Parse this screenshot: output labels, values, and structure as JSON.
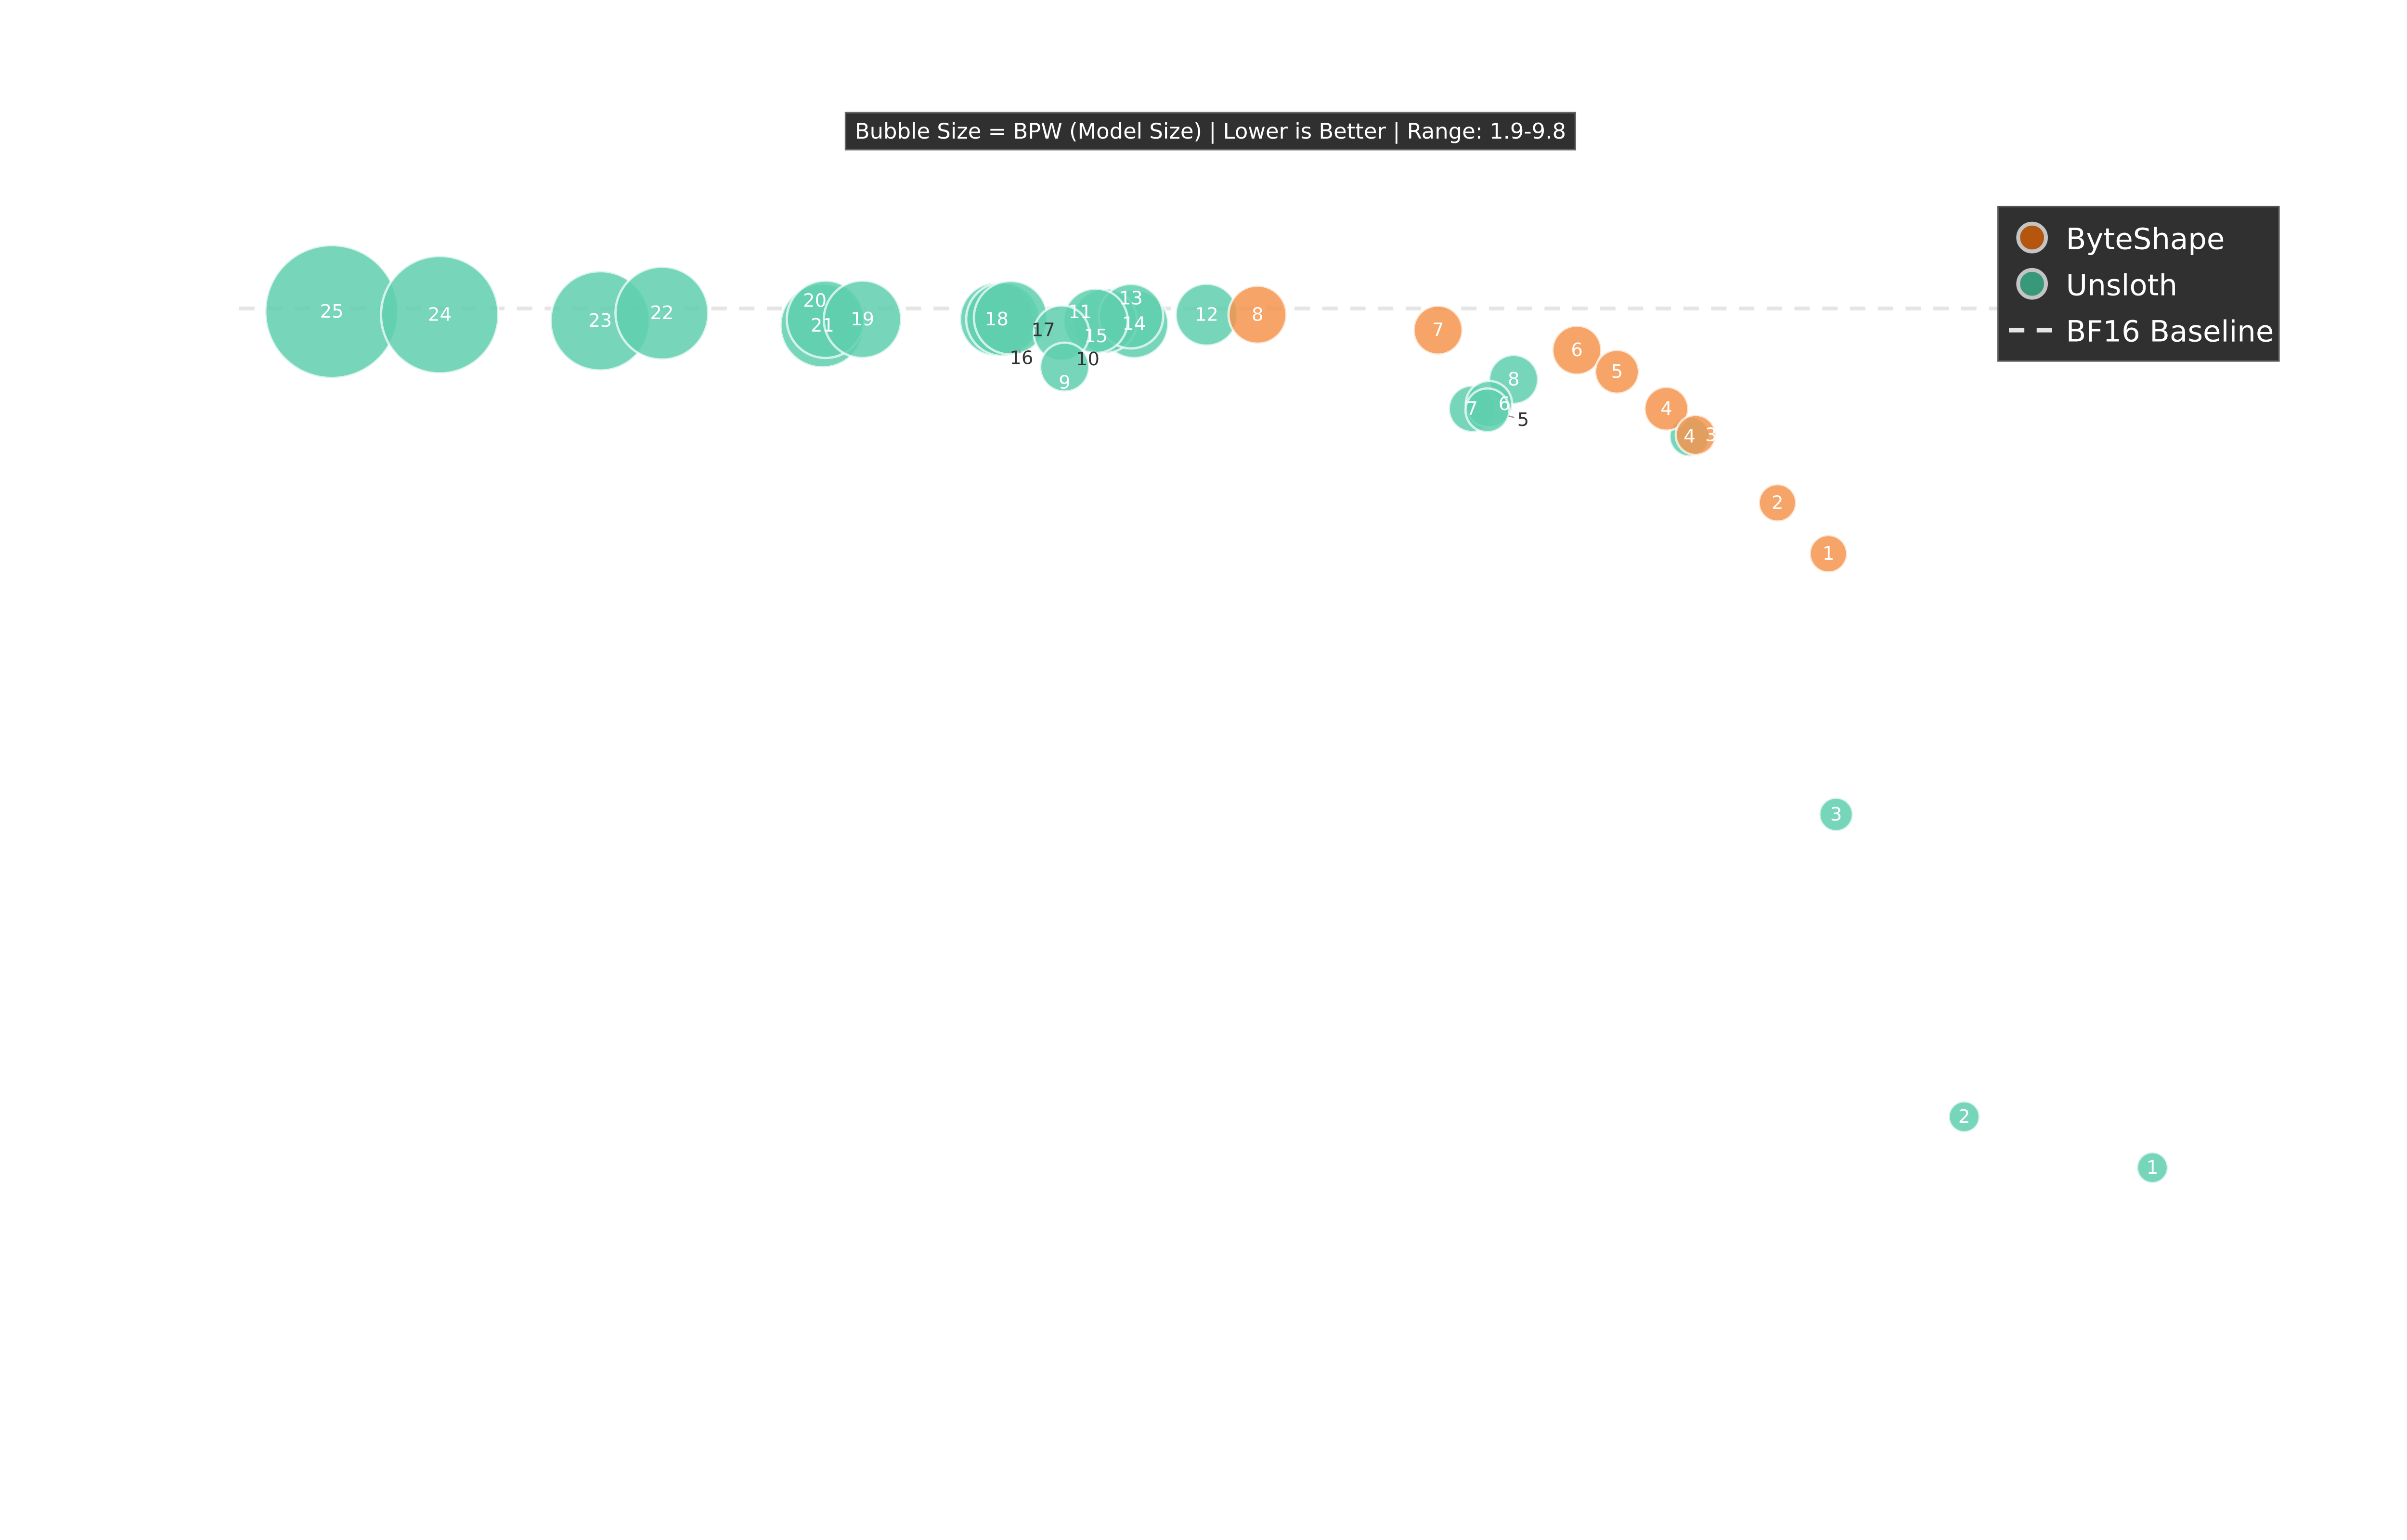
{
  "chart_data": {
    "type": "scatter",
    "subtitle": "Bubble Size = BPW (Model Size) | Lower is Better | Range: 1.9-9.8",
    "xlabel": "",
    "ylabel": "",
    "axes_visible": false,
    "grid": false,
    "legend_placement": "top-right",
    "size_encoding": "bpw",
    "bpw_range": [
      1.9,
      9.8
    ],
    "baseline": {
      "name": "BF16 Baseline",
      "y": 0,
      "style": "dashed",
      "color": "#e5e5e5"
    },
    "series": [
      {
        "name": "Unsloth",
        "color": "#5fcfae",
        "legend_color": "#38987a",
        "points": [
          {
            "label": "25",
            "x": 21.5,
            "y": 0.2,
            "bpw": 9.8
          },
          {
            "label": "24",
            "x": 28.5,
            "y": 0.4,
            "bpw": 8.6
          },
          {
            "label": "23",
            "x": 38.9,
            "y": 0.8,
            "bpw": 7.2
          },
          {
            "label": "22",
            "x": 42.9,
            "y": 0.3,
            "bpw": 6.7
          },
          {
            "label": "21",
            "x": 53.3,
            "y": 1.1,
            "bpw": 6.0
          },
          {
            "label": "20",
            "x": 53.5,
            "y": 0.7,
            "bpw": 5.5
          },
          {
            "label": "19",
            "x": 55.9,
            "y": 0.7,
            "bpw": 5.5
          },
          {
            "label": "18",
            "x": 64.6,
            "y": 0.7,
            "bpw": 5.2
          },
          {
            "label": "17",
            "x": 65.0,
            "y": 0.7,
            "bpw": 5.2
          },
          {
            "label": "16",
            "x": 65.5,
            "y": 0.6,
            "bpw": 5.2
          },
          {
            "label": "15",
            "x": 71.6,
            "y": 0.8,
            "bpw": 4.5
          },
          {
            "label": "14",
            "x": 73.5,
            "y": 1.0,
            "bpw": 4.8
          },
          {
            "label": "13",
            "x": 73.3,
            "y": 0.5,
            "bpw": 4.5
          },
          {
            "label": "12",
            "x": 78.2,
            "y": 0.4,
            "bpw": 4.3
          },
          {
            "label": "11",
            "x": 71.0,
            "y": 0.8,
            "bpw": 4.5
          },
          {
            "label": "10",
            "x": 68.8,
            "y": 1.6,
            "bpw": 3.8
          },
          {
            "label": "9",
            "x": 69.0,
            "y": 3.8,
            "bpw": 3.3
          },
          {
            "label": "8",
            "x": 98.1,
            "y": 4.6,
            "bpw": 3.3
          },
          {
            "label": "7",
            "x": 95.4,
            "y": 6.5,
            "bpw": 3.1
          },
          {
            "label": "6",
            "x": 96.5,
            "y": 6.2,
            "bpw": 3.1
          },
          {
            "label": "5",
            "x": 96.4,
            "y": 6.6,
            "bpw": 2.9
          },
          {
            "label": "4",
            "x": 109.5,
            "y": 8.3,
            "bpw": 2.6
          },
          {
            "label": "3",
            "x": 119.0,
            "y": 32.8,
            "bpw": 2.1
          },
          {
            "label": "2",
            "x": 127.3,
            "y": 52.4,
            "bpw": 1.9
          },
          {
            "label": "1",
            "x": 139.5,
            "y": 55.7,
            "bpw": 1.9
          }
        ]
      },
      {
        "name": "ByteShape",
        "color": "#f4944d",
        "legend_color": "#b5560f",
        "points": [
          {
            "label": "8",
            "x": 81.5,
            "y": 0.4,
            "bpw": 4.0
          },
          {
            "label": "7",
            "x": 93.2,
            "y": 1.4,
            "bpw": 3.3
          },
          {
            "label": "6",
            "x": 102.2,
            "y": 2.7,
            "bpw": 3.3
          },
          {
            "label": "5",
            "x": 104.8,
            "y": 4.1,
            "bpw": 2.9
          },
          {
            "label": "4",
            "x": 108.0,
            "y": 6.5,
            "bpw": 2.9
          },
          {
            "label": "3",
            "x": 109.9,
            "y": 8.2,
            "bpw": 2.6
          },
          {
            "label": "2",
            "x": 115.2,
            "y": 12.6,
            "bpw": 2.4
          },
          {
            "label": "1",
            "x": 118.5,
            "y": 15.9,
            "bpw": 2.4
          }
        ]
      }
    ]
  }
}
